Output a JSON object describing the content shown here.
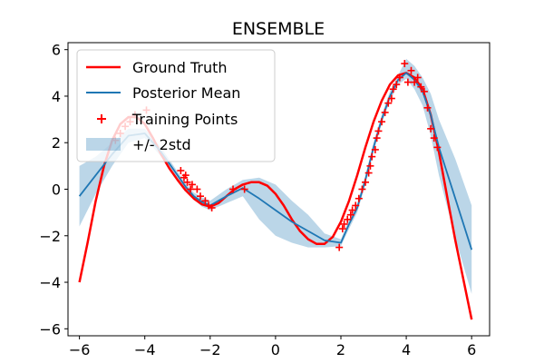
{
  "chart_data": {
    "type": "line",
    "title": "ENSEMBLE",
    "xlabel": "",
    "ylabel": "",
    "xlim": [
      -6.35,
      6.55
    ],
    "ylim": [
      -6.3,
      6.3
    ],
    "xticks": [
      -6,
      -4,
      -2,
      0,
      2,
      4,
      6
    ],
    "yticks": [
      -6,
      -4,
      -2,
      0,
      2,
      4,
      6
    ],
    "grid": false,
    "legend_position": "top-left",
    "series": [
      {
        "name": "Ground Truth",
        "color": "#ff0000",
        "x": [
          -6.0,
          -5.75,
          -5.5,
          -5.25,
          -5.0,
          -4.75,
          -4.5,
          -4.25,
          -4.0,
          -3.75,
          -3.5,
          -3.25,
          -3.0,
          -2.75,
          -2.5,
          -2.25,
          -2.0,
          -1.75,
          -1.5,
          -1.25,
          -1.0,
          -0.75,
          -0.5,
          -0.25,
          0.0,
          0.25,
          0.5,
          0.75,
          1.0,
          1.25,
          1.5,
          1.75,
          2.0,
          2.25,
          2.5,
          2.75,
          3.0,
          3.25,
          3.5,
          3.75,
          4.0,
          4.25,
          4.5,
          4.75,
          5.0,
          5.25,
          5.5,
          5.75,
          6.0
        ],
        "y": [
          -4.0,
          -2.3,
          -0.5,
          1.0,
          2.1,
          2.8,
          3.1,
          3.1,
          2.8,
          2.2,
          1.5,
          0.9,
          0.4,
          -0.05,
          -0.4,
          -0.65,
          -0.75,
          -0.6,
          -0.3,
          0.0,
          0.2,
          0.3,
          0.3,
          0.15,
          -0.2,
          -0.7,
          -1.3,
          -1.8,
          -2.15,
          -2.35,
          -2.35,
          -2.05,
          -1.4,
          -0.5,
          0.6,
          1.8,
          2.9,
          3.8,
          4.5,
          4.9,
          5.0,
          4.8,
          4.3,
          3.2,
          1.6,
          -0.3,
          -2.2,
          -3.9,
          -5.6
        ]
      },
      {
        "name": "Posterior Mean",
        "color": "#1f77b4",
        "x": [
          -6.0,
          -5.5,
          -5.0,
          -4.5,
          -4.0,
          -3.5,
          -3.0,
          -2.75,
          -2.5,
          -2.25,
          -2.0,
          -1.5,
          -1.0,
          -0.5,
          0.0,
          0.5,
          1.0,
          1.5,
          2.0,
          2.25,
          2.5,
          2.75,
          3.0,
          3.25,
          3.5,
          3.75,
          4.0,
          4.25,
          4.5,
          4.75,
          5.0,
          5.5,
          6.0
        ],
        "y": [
          -0.3,
          0.6,
          1.5,
          2.3,
          2.4,
          1.6,
          0.6,
          0.1,
          -0.3,
          -0.55,
          -0.7,
          -0.3,
          0.05,
          -0.4,
          -0.9,
          -1.4,
          -1.8,
          -2.2,
          -2.3,
          -1.5,
          -0.8,
          0.4,
          1.8,
          3.0,
          4.0,
          4.7,
          5.0,
          4.7,
          4.2,
          3.2,
          1.8,
          -0.4,
          -2.6
        ]
      }
    ],
    "band": {
      "name": "+/- 2std",
      "color": "#1f77b4",
      "opacity": 0.3,
      "x": [
        -6.0,
        -5.5,
        -5.0,
        -4.5,
        -4.0,
        -3.5,
        -3.0,
        -2.75,
        -2.5,
        -2.25,
        -2.0,
        -1.5,
        -1.0,
        -0.5,
        0.0,
        0.5,
        1.0,
        1.5,
        2.0,
        2.25,
        2.5,
        2.75,
        3.0,
        3.25,
        3.5,
        3.75,
        4.0,
        4.25,
        4.5,
        4.75,
        5.0,
        5.5,
        6.0
      ],
      "lower": [
        -1.6,
        -0.2,
        1.0,
        2.0,
        2.2,
        1.4,
        0.45,
        -0.05,
        -0.45,
        -0.75,
        -0.9,
        -0.6,
        -0.3,
        -1.3,
        -2.0,
        -2.3,
        -2.5,
        -2.5,
        -2.45,
        -1.7,
        -1.0,
        0.2,
        1.6,
        2.8,
        3.8,
        4.5,
        4.75,
        4.3,
        3.6,
        2.3,
        0.6,
        -2.1,
        -4.5
      ],
      "upper": [
        1.0,
        1.4,
        2.0,
        2.6,
        2.6,
        1.8,
        0.75,
        0.25,
        -0.15,
        -0.35,
        -0.5,
        0.0,
        0.4,
        0.5,
        0.2,
        -0.5,
        -1.1,
        -1.9,
        -2.15,
        -1.3,
        -0.6,
        0.6,
        2.0,
        3.2,
        4.2,
        4.9,
        5.6,
        5.3,
        4.8,
        4.1,
        3.0,
        1.3,
        -0.7
      ]
    },
    "training_points": {
      "name": "Training Points",
      "color": "#ff0000",
      "marker": "+",
      "x": [
        -4.9,
        -4.75,
        -4.6,
        -4.45,
        -4.3,
        -3.95,
        -2.9,
        -2.8,
        -2.75,
        -2.7,
        -2.6,
        -2.55,
        -2.4,
        -2.3,
        -2.15,
        -2.05,
        -1.95,
        -1.3,
        -0.95,
        1.95,
        2.05,
        2.1,
        2.2,
        2.3,
        2.35,
        2.45,
        2.55,
        2.65,
        2.75,
        2.85,
        2.9,
        2.95,
        3.05,
        3.1,
        3.15,
        3.25,
        3.35,
        3.45,
        3.55,
        3.6,
        3.7,
        3.8,
        3.95,
        4.05,
        4.15,
        4.25,
        4.35,
        4.45,
        4.55,
        4.65,
        4.75,
        4.85,
        4.95
      ],
      "y": [
        2.1,
        2.4,
        2.7,
        2.9,
        3.2,
        3.4,
        0.8,
        0.5,
        0.6,
        0.3,
        0.0,
        0.2,
        0.0,
        -0.3,
        -0.5,
        -0.7,
        -0.8,
        0.0,
        0.0,
        -2.5,
        -1.7,
        -1.5,
        -1.3,
        -1.1,
        -0.9,
        -0.7,
        -0.4,
        0.0,
        0.3,
        0.7,
        1.0,
        1.4,
        1.7,
        2.2,
        2.5,
        2.9,
        3.3,
        3.7,
        3.9,
        4.3,
        4.5,
        4.8,
        5.4,
        4.6,
        5.1,
        4.6,
        4.8,
        4.4,
        4.2,
        3.5,
        2.6,
        2.2,
        1.8
      ]
    }
  }
}
